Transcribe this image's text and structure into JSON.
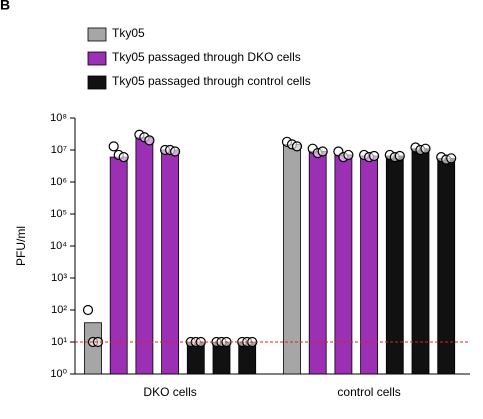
{
  "chart_data": {
    "type": "bar",
    "panel_label": "B",
    "ylabel": "PFU/ml",
    "log_scale": true,
    "categories": [
      "DKO cells",
      "control cells"
    ],
    "series": [
      {
        "name": "Tky05",
        "color": "#a6a6a6",
        "values": [
          [
            40
          ],
          [
            15000000
          ]
        ],
        "points": [
          [
            [
              100,
              10,
              10
            ]
          ],
          [
            [
              18000000,
              15000000,
              13000000
            ]
          ]
        ]
      },
      {
        "name": "Tky05 passaged through DKO cells",
        "color": "#9b30b5",
        "values": [
          [
            6000000,
            25000000,
            10000000
          ],
          [
            9000000,
            7000000,
            6500000
          ]
        ],
        "points": [
          [
            [
              13000000,
              7000000,
              6000000
            ],
            [
              30000000,
              25000000,
              20000000
            ],
            [
              10000000,
              10000000,
              9000000
            ]
          ],
          [
            [
              11000000,
              8000000,
              9000000
            ],
            [
              9000000,
              6000000,
              7000000
            ],
            [
              7000000,
              6000000,
              6500000
            ]
          ]
        ]
      },
      {
        "name": "Tky05 passaged through control cells",
        "color": "#111111",
        "values": [
          [
            10,
            10,
            10
          ],
          [
            6500000,
            11000000,
            5500000
          ]
        ],
        "points": [
          [
            [
              10,
              10,
              10
            ],
            [
              10,
              10,
              10
            ],
            [
              10,
              10,
              10
            ]
          ],
          [
            [
              7000000,
              6000000,
              6500000
            ],
            [
              12000000,
              10000000,
              11000000
            ],
            [
              6000000,
              5000000,
              5500000
            ]
          ]
        ]
      }
    ],
    "ylim": [
      1,
      100000000
    ],
    "yticks": [
      {
        "value": 1,
        "label": "10⁰"
      },
      {
        "value": 10,
        "label": "10¹"
      },
      {
        "value": 100,
        "label": "10²"
      },
      {
        "value": 1000,
        "label": "10³"
      },
      {
        "value": 10000,
        "label": "10⁴"
      },
      {
        "value": 100000,
        "label": "10⁵"
      },
      {
        "value": 1000000,
        "label": "10⁶"
      },
      {
        "value": 10000000,
        "label": "10⁷"
      },
      {
        "value": 100000000,
        "label": "10⁸"
      }
    ],
    "threshold": {
      "value": 10,
      "color": "#e02020"
    }
  }
}
